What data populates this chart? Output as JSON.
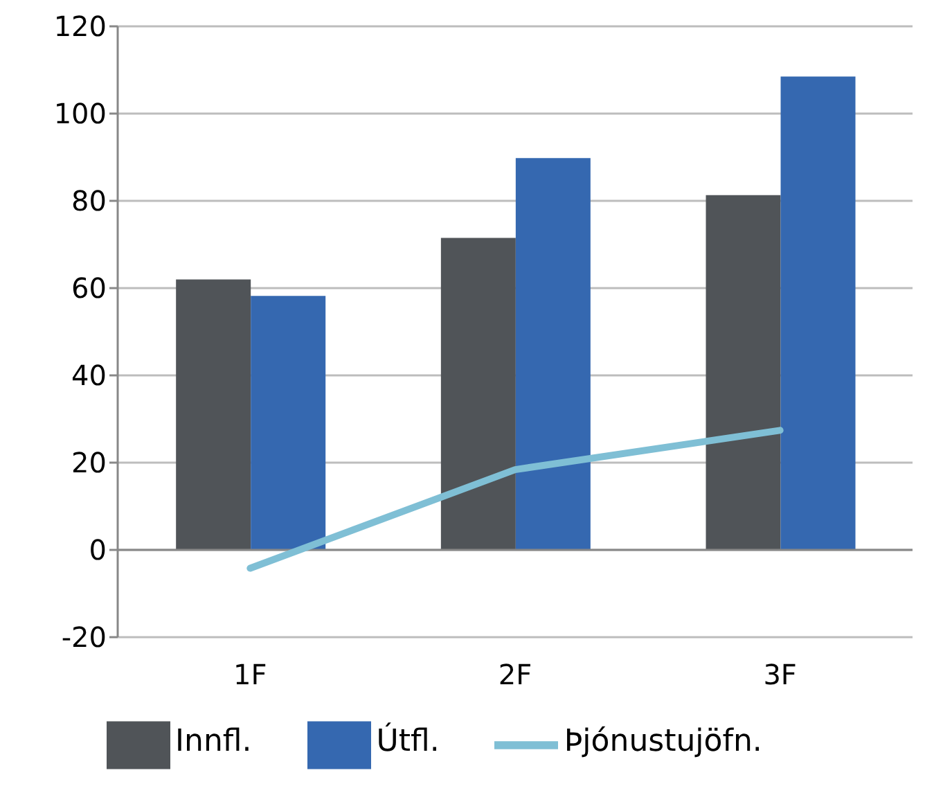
{
  "chart_data": {
    "type": "bar",
    "categories": [
      "1F",
      "2F",
      "3F"
    ],
    "series": [
      {
        "name": "Innfl.",
        "color": "#505458",
        "values": [
          62,
          71.5,
          81.3
        ]
      },
      {
        "name": "Útfl.",
        "color": "#3568b0",
        "values": [
          58.2,
          89.8,
          108.5
        ]
      },
      {
        "name": "Þjónustujöfn.",
        "type": "line",
        "color": "#7fbfd5",
        "values": [
          -4.2,
          18.4,
          27.4
        ]
      }
    ],
    "ylim": [
      -20,
      120
    ],
    "yticks": [
      -20,
      0,
      20,
      40,
      60,
      80,
      100,
      120
    ],
    "grid": "y",
    "legend": "bottom",
    "marker": "none",
    "line_style": "solid"
  }
}
